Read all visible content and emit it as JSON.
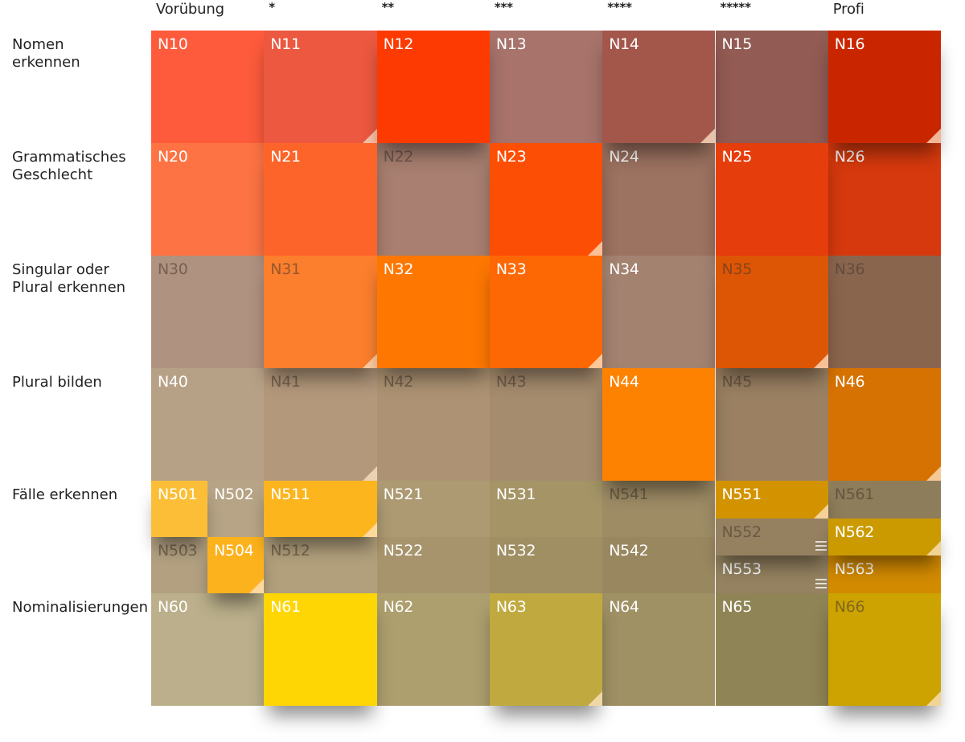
{
  "columns": [
    {
      "label": "Vorübung",
      "stars": false
    },
    {
      "label": "*",
      "stars": true
    },
    {
      "label": "**",
      "stars": true
    },
    {
      "label": "***",
      "stars": true
    },
    {
      "label": "****",
      "stars": true
    },
    {
      "label": "*****",
      "stars": true
    },
    {
      "label": "Profi",
      "stars": false
    }
  ],
  "rows": [
    {
      "label": "Nomen\nerkennen"
    },
    {
      "label": "Grammatisches\nGeschlecht"
    },
    {
      "label": "Singular oder\nPlural erkennen"
    },
    {
      "label": "Plural bilden"
    },
    {
      "label": "Fälle erkennen"
    },
    {
      "label": "Nominalisierungen"
    }
  ],
  "tiles": [
    {
      "id": "N10",
      "color": "#fd5b3b",
      "active": false,
      "dim": false,
      "ear": false
    },
    {
      "id": "N11",
      "color": "#ec5840",
      "active": true,
      "dim": false,
      "ear": true
    },
    {
      "id": "N12",
      "color": "#fd3a02",
      "active": true,
      "dim": false,
      "ear": false
    },
    {
      "id": "N13",
      "color": "#a7736b",
      "active": false,
      "dim": false,
      "ear": false
    },
    {
      "id": "N14",
      "color": "#a3574b",
      "active": true,
      "dim": false,
      "ear": true
    },
    {
      "id": "N15",
      "color": "#925b53",
      "active": false,
      "dim": false,
      "ear": false
    },
    {
      "id": "N16",
      "color": "#c92600",
      "active": true,
      "dim": false,
      "ear": true
    },
    {
      "id": "N20",
      "color": "#fd7343",
      "active": false,
      "dim": false,
      "ear": false
    },
    {
      "id": "N21",
      "color": "#fd6429",
      "active": true,
      "dim": false,
      "ear": false
    },
    {
      "id": "N22",
      "color": "#a87f70",
      "active": false,
      "dim": true,
      "ear": false
    },
    {
      "id": "N23",
      "color": "#fd4e05",
      "active": true,
      "dim": false,
      "ear": true
    },
    {
      "id": "N24",
      "color": "#9c7260",
      "active": false,
      "dim": false,
      "ear": false
    },
    {
      "id": "N25",
      "color": "#e63d0c",
      "active": true,
      "dim": false,
      "ear": false
    },
    {
      "id": "N26",
      "color": "#d6390d",
      "active": false,
      "dim": false,
      "ear": false
    },
    {
      "id": "N30",
      "color": "#b09280",
      "active": false,
      "dim": true,
      "ear": false
    },
    {
      "id": "N31",
      "color": "#fb7f2d",
      "active": true,
      "dim": true,
      "ear": true
    },
    {
      "id": "N32",
      "color": "#fd7701",
      "active": true,
      "dim": false,
      "ear": false
    },
    {
      "id": "N33",
      "color": "#fd6804",
      "active": true,
      "dim": false,
      "ear": true
    },
    {
      "id": "N34",
      "color": "#a38270",
      "active": false,
      "dim": false,
      "ear": false
    },
    {
      "id": "N35",
      "color": "#dd5605",
      "active": true,
      "dim": true,
      "ear": true
    },
    {
      "id": "N36",
      "color": "#8a654e",
      "active": false,
      "dim": true,
      "ear": false
    },
    {
      "id": "N40",
      "color": "#b7a186",
      "active": false,
      "dim": false,
      "ear": false
    },
    {
      "id": "N41",
      "color": "#b3987b",
      "active": false,
      "dim": true,
      "ear": true
    },
    {
      "id": "N42",
      "color": "#ad9373",
      "active": false,
      "dim": true,
      "ear": false
    },
    {
      "id": "N43",
      "color": "#a68c6e",
      "active": false,
      "dim": true,
      "ear": false
    },
    {
      "id": "N44",
      "color": "#fd8201",
      "active": true,
      "dim": false,
      "ear": false
    },
    {
      "id": "N45",
      "color": "#9b8062",
      "active": false,
      "dim": true,
      "ear": false
    },
    {
      "id": "N46",
      "color": "#d67202",
      "active": false,
      "dim": false,
      "ear": true
    },
    {
      "id": "N501",
      "color": "#fcbe36",
      "active": true,
      "dim": false,
      "ear": false
    },
    {
      "id": "N502",
      "color": "#b7a486",
      "active": false,
      "dim": false,
      "ear": false
    },
    {
      "id": "N503",
      "color": "#b2a080",
      "active": false,
      "dim": true,
      "ear": false
    },
    {
      "id": "N504",
      "color": "#fcb21d",
      "active": true,
      "dim": false,
      "ear": true
    },
    {
      "id": "N511",
      "color": "#fcb51d",
      "active": true,
      "dim": false,
      "ear": true
    },
    {
      "id": "N512",
      "color": "#b2a07c",
      "active": false,
      "dim": true,
      "ear": false
    },
    {
      "id": "N521",
      "color": "#ad9a72",
      "active": false,
      "dim": false,
      "ear": false
    },
    {
      "id": "N522",
      "color": "#a8946c",
      "active": false,
      "dim": false,
      "ear": false
    },
    {
      "id": "N531",
      "color": "#a49466",
      "active": false,
      "dim": false,
      "ear": false
    },
    {
      "id": "N532",
      "color": "#a08f62",
      "active": false,
      "dim": false,
      "ear": false
    },
    {
      "id": "N541",
      "color": "#9e8c65",
      "active": false,
      "dim": true,
      "ear": false
    },
    {
      "id": "N542",
      "color": "#998760",
      "active": false,
      "dim": false,
      "ear": false
    },
    {
      "id": "N551",
      "color": "#d39300",
      "active": true,
      "dim": false,
      "ear": true
    },
    {
      "id": "N552",
      "color": "#958160",
      "active": true,
      "dim": true,
      "ear": false,
      "menu": true
    },
    {
      "id": "N553",
      "color": "#948260",
      "active": false,
      "dim": false,
      "ear": false,
      "menu": true
    },
    {
      "id": "N561",
      "color": "#8e7d5a",
      "active": false,
      "dim": true,
      "ear": false
    },
    {
      "id": "N562",
      "color": "#cb9a00",
      "active": true,
      "dim": false,
      "ear": true
    },
    {
      "id": "N563",
      "color": "#d28a00",
      "active": false,
      "dim": false,
      "ear": false
    },
    {
      "id": "N60",
      "color": "#bbb08b",
      "active": false,
      "dim": false,
      "ear": false
    },
    {
      "id": "N61",
      "color": "#fdd604",
      "active": true,
      "dim": false,
      "ear": false
    },
    {
      "id": "N62",
      "color": "#ad9f6e",
      "active": false,
      "dim": false,
      "ear": false
    },
    {
      "id": "N63",
      "color": "#c0aa40",
      "active": true,
      "dim": false,
      "ear": true
    },
    {
      "id": "N64",
      "color": "#9f9164",
      "active": false,
      "dim": false,
      "ear": false
    },
    {
      "id": "N65",
      "color": "#8f8455",
      "active": false,
      "dim": false,
      "ear": false
    },
    {
      "id": "N66",
      "color": "#cca300",
      "active": true,
      "dim": true,
      "ear": true
    }
  ]
}
